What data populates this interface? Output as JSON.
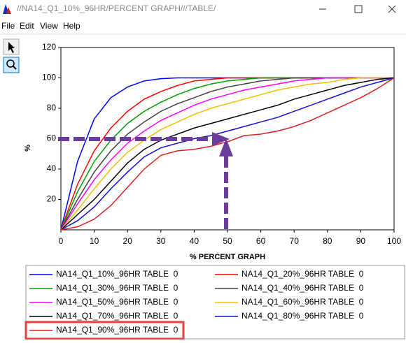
{
  "window_title": "//NA14_Q1_10%_96HR/PERCENT GRAPH///TABLE/",
  "menu": [
    "File",
    "Edit",
    "View",
    "Help"
  ],
  "chart_data": {
    "type": "line",
    "xlabel": "% PERCENT GRAPH",
    "ylabel": "%",
    "x": [
      0,
      5,
      10,
      15,
      20,
      25,
      30,
      35,
      40,
      45,
      50,
      55,
      60,
      65,
      70,
      75,
      80,
      85,
      90,
      95,
      100
    ],
    "xlim": [
      0,
      100
    ],
    "xticks": [
      0,
      10,
      20,
      30,
      40,
      50,
      60,
      70,
      80,
      90,
      100
    ],
    "ylim": [
      0,
      120
    ],
    "yticks": [
      20,
      40,
      60,
      80,
      100,
      120
    ],
    "grid": false,
    "series": [
      {
        "name": "NA14_Q1_10%_96HR TABLE  0",
        "color": "#0000ff",
        "values": [
          0,
          45,
          73,
          87,
          94,
          98,
          99.5,
          100,
          100,
          100,
          100,
          100,
          100,
          100,
          100,
          100,
          100,
          100,
          100,
          100,
          100
        ]
      },
      {
        "name": "NA14_Q1_20%_96HR TABLE  0",
        "color": "#ff0000",
        "values": [
          0,
          30,
          52,
          67,
          78,
          86,
          91,
          95,
          98,
          99,
          100,
          100,
          100,
          100,
          100,
          100,
          100,
          100,
          100,
          100,
          100
        ]
      },
      {
        "name": "NA14_Q1_30%_96HR TABLE  0",
        "color": "#00a000",
        "values": [
          0,
          25,
          45,
          59,
          70,
          78,
          84,
          89,
          93,
          96,
          98,
          99,
          100,
          100,
          100,
          100,
          100,
          100,
          100,
          100,
          100
        ]
      },
      {
        "name": "NA14_Q1_40%_96HR TABLE  0",
        "color": "#404040",
        "values": [
          0,
          20,
          38,
          52,
          63,
          71,
          78,
          83,
          87,
          91,
          94,
          96,
          98,
          99,
          100,
          100,
          100,
          100,
          100,
          100,
          100
        ]
      },
      {
        "name": "NA14_Q1_50%_96HR TABLE  0",
        "color": "#ff00ff",
        "values": [
          0,
          17,
          33,
          46,
          57,
          65,
          72,
          77,
          82,
          86,
          89,
          92,
          94,
          96,
          98,
          99,
          100,
          100,
          100,
          100,
          100
        ]
      },
      {
        "name": "NA14_Q1_60%_96HR TABLE  0",
        "color": "#f0c000",
        "values": [
          0,
          13,
          27,
          40,
          51,
          59,
          66,
          71,
          76,
          80,
          83,
          86,
          89,
          92,
          94,
          96,
          97,
          99,
          100,
          100,
          100
        ]
      },
      {
        "name": "NA14_Q1_70%_96HR TABLE  0",
        "color": "#000000",
        "values": [
          0,
          10,
          20,
          32,
          44,
          53,
          59,
          63,
          67,
          70,
          73,
          76,
          79,
          82,
          86,
          89,
          92,
          95,
          97,
          99,
          100
        ]
      },
      {
        "name": "NA14_Q1_80%_96HR TABLE  0",
        "color": "#1010d0",
        "values": [
          0,
          6,
          15,
          27,
          38,
          48,
          54,
          57,
          60,
          62,
          65,
          68,
          71,
          74,
          78,
          82,
          86,
          90,
          94,
          97,
          100
        ]
      },
      {
        "name": "NA14_Q1_90%_96HR TABLE  0",
        "color": "#e02020",
        "values": [
          0,
          2,
          7,
          16,
          28,
          40,
          49,
          52,
          53,
          55,
          58,
          62,
          63,
          65,
          68,
          72,
          77,
          82,
          87,
          93,
          100
        ]
      }
    ]
  }
}
